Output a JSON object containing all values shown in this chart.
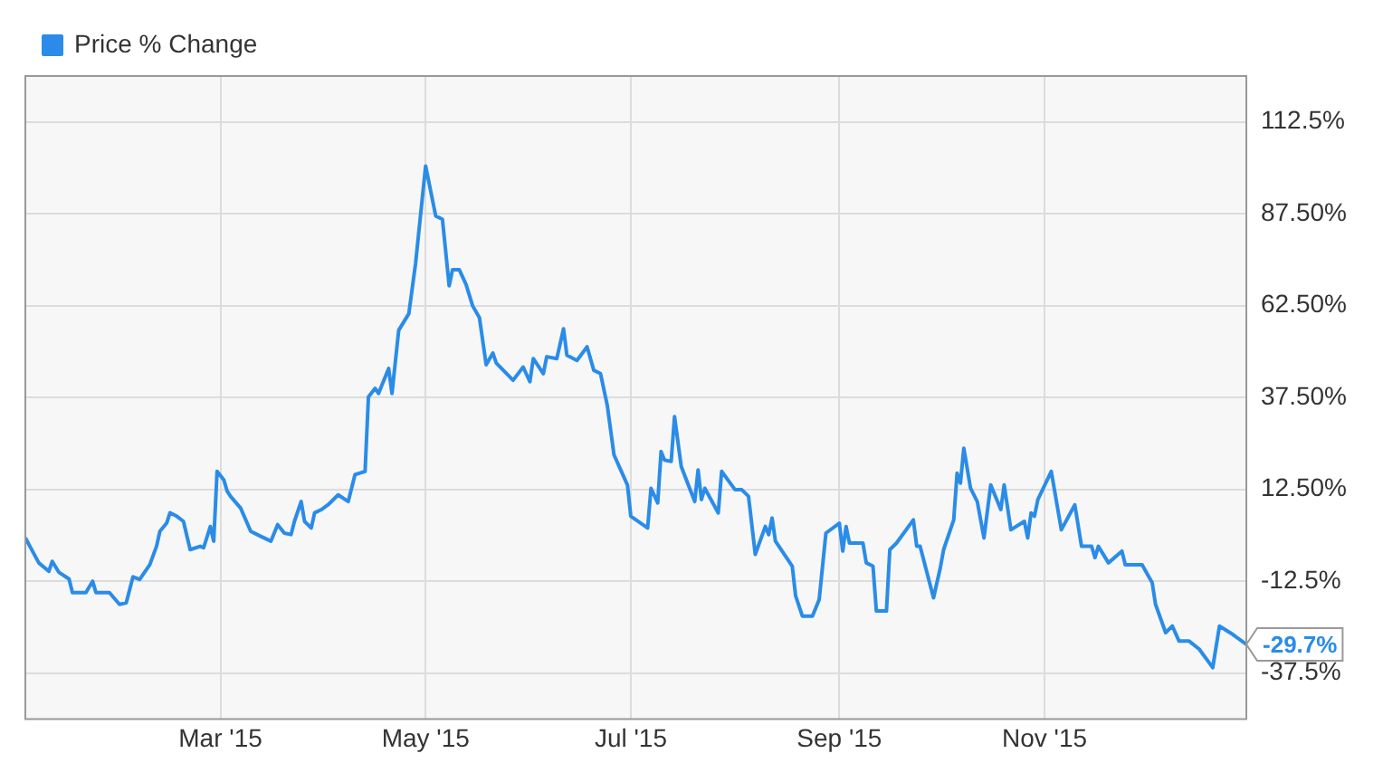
{
  "chart_data": {
    "type": "line",
    "x": [
      "2015-01-02",
      "2015-01-06",
      "2015-01-09",
      "2015-01-10",
      "2015-01-12",
      "2015-01-15",
      "2015-01-16",
      "2015-01-20",
      "2015-01-22",
      "2015-01-23",
      "2015-01-27",
      "2015-01-30",
      "2015-02-01",
      "2015-02-03",
      "2015-02-05",
      "2015-02-08",
      "2015-02-10",
      "2015-02-11",
      "2015-02-13",
      "2015-02-14",
      "2015-02-16",
      "2015-02-18",
      "2015-02-20",
      "2015-02-23",
      "2015-02-24",
      "2015-02-26",
      "2015-02-27",
      "2015-02-28",
      "2015-03-02",
      "2015-03-03",
      "2015-03-04",
      "2015-03-07",
      "2015-03-10",
      "2015-03-13",
      "2015-03-16",
      "2015-03-18",
      "2015-03-20",
      "2015-03-22",
      "2015-03-23",
      "2015-03-25",
      "2015-03-26",
      "2015-03-28",
      "2015-03-29",
      "2015-03-31",
      "2015-04-02",
      "2015-04-05",
      "2015-04-08",
      "2015-04-10",
      "2015-04-13",
      "2015-04-14",
      "2015-04-16",
      "2015-04-17",
      "2015-04-20",
      "2015-04-21",
      "2015-04-23",
      "2015-04-26",
      "2015-04-28",
      "2015-05-01",
      "2015-05-04",
      "2015-05-06",
      "2015-05-08",
      "2015-05-09",
      "2015-05-11",
      "2015-05-13",
      "2015-05-15",
      "2015-05-17",
      "2015-05-19",
      "2015-05-21",
      "2015-05-22",
      "2015-05-27",
      "2015-05-30",
      "2015-06-01",
      "2015-06-02",
      "2015-06-05",
      "2015-06-06",
      "2015-06-09",
      "2015-06-11",
      "2015-06-12",
      "2015-06-15",
      "2015-06-18",
      "2015-06-20",
      "2015-06-22",
      "2015-06-24",
      "2015-06-26",
      "2015-06-30",
      "2015-07-01",
      "2015-07-06",
      "2015-07-07",
      "2015-07-09",
      "2015-07-10",
      "2015-07-11",
      "2015-07-13",
      "2015-07-14",
      "2015-07-16",
      "2015-07-20",
      "2015-07-21",
      "2015-07-22",
      "2015-07-23",
      "2015-07-27",
      "2015-07-28",
      "2015-08-01",
      "2015-08-03",
      "2015-08-05",
      "2015-08-07",
      "2015-08-10",
      "2015-08-11",
      "2015-08-12",
      "2015-08-13",
      "2015-08-18",
      "2015-08-19",
      "2015-08-21",
      "2015-08-24",
      "2015-08-26",
      "2015-08-28",
      "2015-09-01",
      "2015-09-02",
      "2015-09-03",
      "2015-09-04",
      "2015-09-08",
      "2015-09-09",
      "2015-09-11",
      "2015-09-12",
      "2015-09-15",
      "2015-09-16",
      "2015-09-18",
      "2015-09-23",
      "2015-09-24",
      "2015-09-25",
      "2015-09-29",
      "2015-10-01",
      "2015-10-02",
      "2015-10-05",
      "2015-10-06",
      "2015-10-07",
      "2015-10-08",
      "2015-10-10",
      "2015-10-12",
      "2015-10-14",
      "2015-10-16",
      "2015-10-19",
      "2015-10-20",
      "2015-10-22",
      "2015-10-26",
      "2015-10-27",
      "2015-10-28",
      "2015-10-29",
      "2015-10-30",
      "2015-11-03",
      "2015-11-06",
      "2015-11-10",
      "2015-11-12",
      "2015-11-15",
      "2015-11-16",
      "2015-11-17",
      "2015-11-20",
      "2015-11-24",
      "2015-11-25",
      "2015-11-30",
      "2015-12-03",
      "2015-12-04",
      "2015-12-07",
      "2015-12-09",
      "2015-12-11",
      "2015-12-14",
      "2015-12-17",
      "2015-12-21",
      "2015-12-23",
      "2015-12-27",
      "2015-12-31"
    ],
    "series": [
      {
        "name": "Price % Change",
        "color": "#2a8ce8",
        "values": [
          -0.7,
          -7.5,
          -9.8,
          -7.1,
          -10.1,
          -11.9,
          -15.6,
          -15.6,
          -12.5,
          -15.6,
          -15.6,
          -18.8,
          -18.4,
          -11.3,
          -12,
          -8,
          -3,
          1.1,
          3.3,
          6.1,
          5.2,
          3.8,
          -3.9,
          -3,
          -3.4,
          2.4,
          -1.6,
          17.4,
          15.1,
          12,
          10.6,
          7.4,
          1.1,
          -0.3,
          -1.6,
          2.9,
          0.6,
          0.2,
          3.8,
          9.2,
          3.8,
          2,
          6.1,
          7,
          8.3,
          11,
          9.2,
          16.5,
          17.4,
          37.7,
          40,
          38.6,
          45.4,
          38.6,
          55.8,
          60.3,
          73.9,
          100.5,
          86.9,
          86,
          67.9,
          72.3,
          72.3,
          68.3,
          62.4,
          59.2,
          46.4,
          49.6,
          46.9,
          42.2,
          45.8,
          41.8,
          48.1,
          44,
          48.6,
          48.1,
          56.2,
          49,
          47.6,
          51.3,
          44.9,
          44,
          35.4,
          21.9,
          13.7,
          5.2,
          2,
          12.8,
          8.8,
          22.8,
          20.5,
          20.1,
          32.3,
          18.7,
          9.2,
          17.8,
          9.7,
          12.8,
          6.1,
          17.4,
          12.4,
          12.4,
          10.6,
          -5.2,
          2.4,
          0.2,
          4.7,
          -1.6,
          -8.4,
          -16.5,
          -22,
          -22,
          -17.5,
          0.6,
          3.3,
          -4.3,
          2.4,
          -2.1,
          -2.1,
          -7.5,
          -8.4,
          -20.6,
          -20.6,
          -3.9,
          -2.1,
          4.2,
          -3,
          -3,
          -17,
          -8.9,
          -3.9,
          4.2,
          16.9,
          14.2,
          23.7,
          12.8,
          9.2,
          -0.7,
          13.7,
          7,
          13.7,
          1.5,
          3.8,
          -0.7,
          6.1,
          5.2,
          9.7,
          17.4,
          1.5,
          8.3,
          -3,
          -3,
          -6.1,
          -3,
          -7.5,
          -4.3,
          -8,
          -8,
          -12.9,
          -18.8,
          -26.5,
          -24.7,
          -28.8,
          -28.8,
          -31,
          -36,
          -24.7,
          -27,
          -29.7
        ]
      }
    ],
    "xlim": [
      "2015-01-02",
      "2015-12-31"
    ],
    "xticks": [
      {
        "value": "2015-03-01",
        "label": "Mar '15"
      },
      {
        "value": "2015-05-01",
        "label": "May '15"
      },
      {
        "value": "2015-07-01",
        "label": "Jul '15"
      },
      {
        "value": "2015-09-01",
        "label": "Sep '15"
      },
      {
        "value": "2015-11-01",
        "label": "Nov '15"
      }
    ],
    "ylim": [
      -50,
      125
    ],
    "yticks": [
      {
        "value": -37.5,
        "label": "-37.5%"
      },
      {
        "value": -12.5,
        "label": "-12.5%"
      },
      {
        "value": 12.5,
        "label": "12.50%"
      },
      {
        "value": 37.5,
        "label": "37.50%"
      },
      {
        "value": 62.5,
        "label": "62.50%"
      },
      {
        "value": 87.5,
        "label": "87.50%"
      },
      {
        "value": 112.5,
        "label": "112.5%"
      }
    ],
    "annotations": [
      {
        "text": "-29.7%",
        "x": "2015-12-31",
        "y": -29.7
      }
    ],
    "grid": true,
    "legend": "top left",
    "marker": "none",
    "line_style": "solid"
  }
}
